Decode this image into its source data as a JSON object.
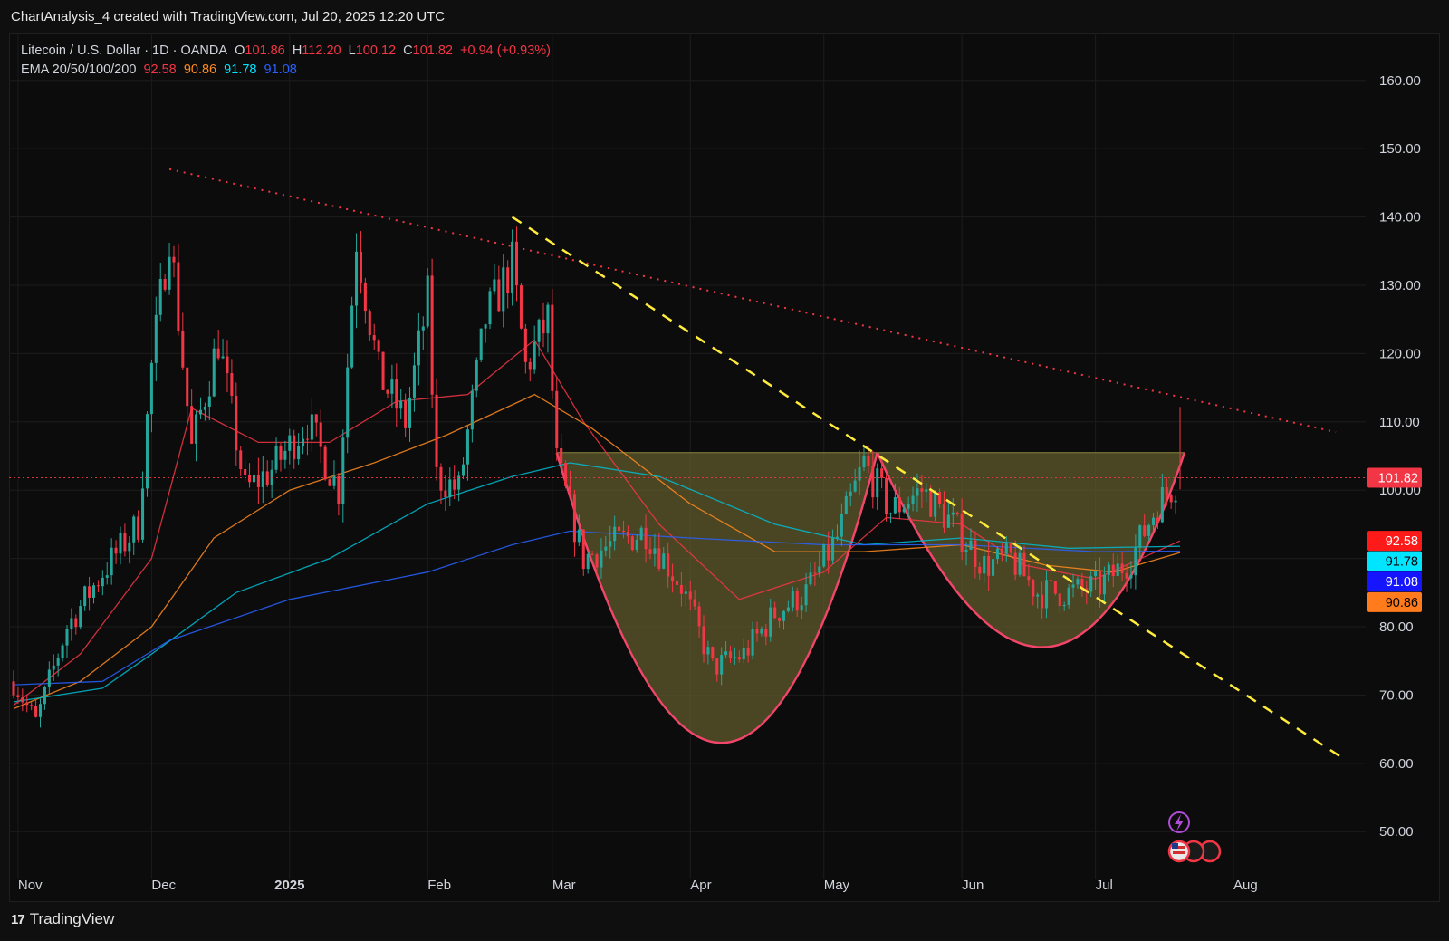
{
  "caption": "ChartAnalysis_4 created with TradingView.com, Jul 20, 2025 12:20 UTC",
  "legend": {
    "symbol": "Litecoin / U.S. Dollar · 1D · OANDA",
    "open_label": "O",
    "open": "101.86",
    "high_label": "H",
    "high": "112.20",
    "low_label": "L",
    "low": "100.12",
    "close_label": "C",
    "close": "101.82",
    "change": "+0.94 (+0.93%)",
    "ema_label": "EMA 20/50/100/200",
    "ema20": "92.58",
    "ema50": "90.86",
    "ema100": "91.78",
    "ema200": "91.08"
  },
  "footer": {
    "brand": "TradingView",
    "logo_mark": "17"
  },
  "colors": {
    "up": "#26a69a",
    "down": "#f23645",
    "ema20": "#f23645",
    "ema50": "#ff8a1e",
    "ema100": "#00bcd4",
    "ema200": "#2962ff",
    "pattern_fill": "#6b6630",
    "pattern_line": "#f2456a",
    "trend_dotted": "#f23645",
    "trend_dashed": "#ffeb3b"
  },
  "icons": [
    "lightning-icon",
    "us-flag-icon"
  ],
  "chart_data": {
    "type": "candlestick",
    "title": "Litecoin / U.S. Dollar · 1D · OANDA",
    "ylim": [
      43,
      167
    ],
    "y_ticks": [
      50,
      60,
      70,
      80,
      90,
      100,
      110,
      120,
      130,
      140,
      150,
      160
    ],
    "y_tick_labels": [
      "50.00",
      "60.00",
      "70.00",
      "80.00",
      "90.00",
      "100.00",
      "110.00",
      "120.00",
      "130.00",
      "140.00",
      "150.00",
      "160.00"
    ],
    "x_range": [
      "2024-10-31",
      "2025-08-25"
    ],
    "x_ticks": [
      {
        "date": "2024-11-01",
        "label": "Nov",
        "bold": false
      },
      {
        "date": "2024-12-01",
        "label": "Dec",
        "bold": false
      },
      {
        "date": "2025-01-01",
        "label": "2025",
        "bold": true
      },
      {
        "date": "2025-02-01",
        "label": "Feb",
        "bold": false
      },
      {
        "date": "2025-03-01",
        "label": "Mar",
        "bold": false
      },
      {
        "date": "2025-04-01",
        "label": "Apr",
        "bold": false
      },
      {
        "date": "2025-05-01",
        "label": "May",
        "bold": false
      },
      {
        "date": "2025-06-01",
        "label": "Jun",
        "bold": false
      },
      {
        "date": "2025-07-01",
        "label": "Jul",
        "bold": false
      },
      {
        "date": "2025-08-01",
        "label": "Aug",
        "bold": false
      }
    ],
    "last_price": 101.82,
    "price_badges": [
      {
        "value": 101.82,
        "label": "101.82",
        "bg": "#f23645",
        "fg": "#ffffff"
      },
      {
        "value": 92.58,
        "label": "92.58",
        "bg": "#ff1a1a",
        "fg": "#ffffff"
      },
      {
        "value": 91.78,
        "label": "91.78",
        "bg": "#00e5ff",
        "fg": "#000000"
      },
      {
        "value": 91.08,
        "label": "91.08",
        "bg": "#1515ff",
        "fg": "#ffffff"
      },
      {
        "value": 90.86,
        "label": "90.86",
        "bg": "#ff7b1c",
        "fg": "#000000"
      }
    ],
    "badge_rows": [
      101.82,
      92.58,
      89.6,
      86.6,
      83.6
    ],
    "anchors": [
      {
        "date": "2024-10-31",
        "price": 72
      },
      {
        "date": "2024-11-05",
        "price": 66
      },
      {
        "date": "2024-11-12",
        "price": 80
      },
      {
        "date": "2024-11-20",
        "price": 88
      },
      {
        "date": "2024-11-28",
        "price": 95
      },
      {
        "date": "2024-12-01",
        "price": 118
      },
      {
        "date": "2024-12-05",
        "price": 138
      },
      {
        "date": "2024-12-10",
        "price": 106
      },
      {
        "date": "2024-12-16",
        "price": 122
      },
      {
        "date": "2024-12-22",
        "price": 100
      },
      {
        "date": "2024-12-28",
        "price": 103
      },
      {
        "date": "2025-01-05",
        "price": 110
      },
      {
        "date": "2025-01-12",
        "price": 100
      },
      {
        "date": "2025-01-16",
        "price": 137
      },
      {
        "date": "2025-01-21",
        "price": 117
      },
      {
        "date": "2025-01-27",
        "price": 110
      },
      {
        "date": "2025-02-01",
        "price": 128
      },
      {
        "date": "2025-02-03",
        "price": 102
      },
      {
        "date": "2025-02-08",
        "price": 100
      },
      {
        "date": "2025-02-14",
        "price": 125
      },
      {
        "date": "2025-02-20",
        "price": 133
      },
      {
        "date": "2025-02-23",
        "price": 118
      },
      {
        "date": "2025-02-28",
        "price": 125
      },
      {
        "date": "2025-03-02",
        "price": 104
      },
      {
        "date": "2025-03-08",
        "price": 90
      },
      {
        "date": "2025-03-14",
        "price": 92
      },
      {
        "date": "2025-03-22",
        "price": 94
      },
      {
        "date": "2025-03-30",
        "price": 86
      },
      {
        "date": "2025-04-06",
        "price": 74
      },
      {
        "date": "2025-04-13",
        "price": 76
      },
      {
        "date": "2025-04-20",
        "price": 82
      },
      {
        "date": "2025-04-27",
        "price": 85
      },
      {
        "date": "2025-05-04",
        "price": 93
      },
      {
        "date": "2025-05-10",
        "price": 104
      },
      {
        "date": "2025-05-16",
        "price": 97
      },
      {
        "date": "2025-05-23",
        "price": 100
      },
      {
        "date": "2025-05-30",
        "price": 95
      },
      {
        "date": "2025-06-06",
        "price": 89
      },
      {
        "date": "2025-06-12",
        "price": 90
      },
      {
        "date": "2025-06-18",
        "price": 85
      },
      {
        "date": "2025-06-25",
        "price": 85
      },
      {
        "date": "2025-07-02",
        "price": 86
      },
      {
        "date": "2025-07-09",
        "price": 90
      },
      {
        "date": "2025-07-15",
        "price": 98
      },
      {
        "date": "2025-07-20",
        "price": 101.82
      }
    ],
    "ema_lines": [
      {
        "name": "EMA 20",
        "value": 92.58,
        "color": "#f23645",
        "points": [
          [
            "2024-10-31",
            68.5
          ],
          [
            "2024-11-15",
            76
          ],
          [
            "2024-12-01",
            90
          ],
          [
            "2024-12-10",
            112
          ],
          [
            "2024-12-25",
            107
          ],
          [
            "2025-01-10",
            107
          ],
          [
            "2025-01-25",
            113
          ],
          [
            "2025-02-10",
            114
          ],
          [
            "2025-02-25",
            122
          ],
          [
            "2025-03-08",
            110
          ],
          [
            "2025-03-25",
            95
          ],
          [
            "2025-04-12",
            84
          ],
          [
            "2025-05-01",
            88
          ],
          [
            "2025-05-15",
            96
          ],
          [
            "2025-06-01",
            95
          ],
          [
            "2025-06-15",
            89
          ],
          [
            "2025-07-01",
            87
          ],
          [
            "2025-07-20",
            92.58
          ]
        ]
      },
      {
        "name": "EMA 50",
        "value": 90.86,
        "color": "#ff8a1e",
        "points": [
          [
            "2024-10-31",
            68
          ],
          [
            "2024-11-15",
            72
          ],
          [
            "2024-12-01",
            80
          ],
          [
            "2024-12-15",
            93
          ],
          [
            "2025-01-01",
            100
          ],
          [
            "2025-01-20",
            104
          ],
          [
            "2025-02-05",
            108
          ],
          [
            "2025-02-25",
            114
          ],
          [
            "2025-03-10",
            109
          ],
          [
            "2025-04-01",
            98
          ],
          [
            "2025-04-20",
            91
          ],
          [
            "2025-05-10",
            91
          ],
          [
            "2025-06-01",
            92
          ],
          [
            "2025-06-20",
            89
          ],
          [
            "2025-07-05",
            88
          ],
          [
            "2025-07-20",
            90.86
          ]
        ]
      },
      {
        "name": "EMA 100",
        "value": 91.78,
        "color": "#00bcd4",
        "points": [
          [
            "2024-10-31",
            69
          ],
          [
            "2024-11-20",
            71
          ],
          [
            "2024-12-01",
            76
          ],
          [
            "2024-12-20",
            85
          ],
          [
            "2025-01-10",
            90
          ],
          [
            "2025-02-01",
            98
          ],
          [
            "2025-02-20",
            102
          ],
          [
            "2025-03-05",
            104
          ],
          [
            "2025-03-25",
            102
          ],
          [
            "2025-04-20",
            95
          ],
          [
            "2025-05-10",
            92
          ],
          [
            "2025-06-01",
            93
          ],
          [
            "2025-06-25",
            91.5
          ],
          [
            "2025-07-20",
            91.78
          ]
        ]
      },
      {
        "name": "EMA 200",
        "value": 91.08,
        "color": "#2962ff",
        "points": [
          [
            "2024-10-31",
            71.5
          ],
          [
            "2024-11-20",
            72
          ],
          [
            "2024-12-05",
            78
          ],
          [
            "2025-01-01",
            84
          ],
          [
            "2025-02-01",
            88
          ],
          [
            "2025-02-20",
            92
          ],
          [
            "2025-03-05",
            94
          ],
          [
            "2025-04-01",
            93
          ],
          [
            "2025-05-01",
            92
          ],
          [
            "2025-06-01",
            92
          ],
          [
            "2025-07-01",
            91
          ],
          [
            "2025-07-20",
            91.08
          ]
        ]
      }
    ],
    "annotations": {
      "neckline": {
        "from": [
          "2025-03-02",
          105.5
        ],
        "to": [
          "2025-07-21",
          105.5
        ]
      },
      "cup_left": [
        [
          "2025-03-02",
          105.5
        ],
        [
          "2025-04-08",
          63
        ],
        [
          "2025-05-13",
          105.5
        ]
      ],
      "cup_right": [
        [
          "2025-05-13",
          105.5
        ],
        [
          "2025-06-19",
          77
        ],
        [
          "2025-07-21",
          105.5
        ]
      ],
      "trendline_dotted": {
        "from": [
          "2024-12-05",
          147
        ],
        "to": [
          "2025-08-24",
          108.5
        ]
      },
      "trendline_dashed": {
        "from": [
          "2025-02-20",
          140
        ],
        "to": [
          "2025-08-25",
          61
        ]
      }
    }
  }
}
